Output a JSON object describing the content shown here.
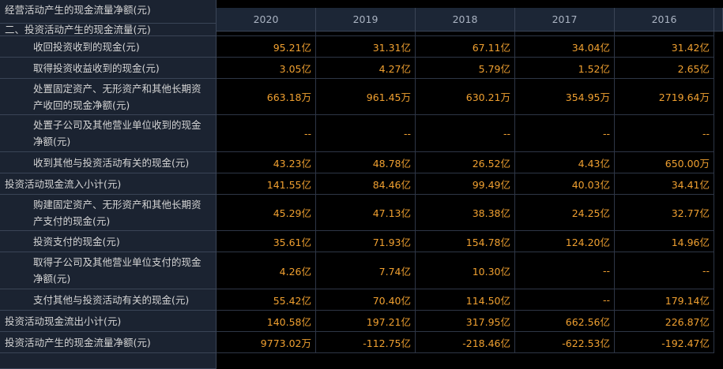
{
  "top_row": {
    "label": "经营活动产生的现金流量净额(元)"
  },
  "columns": [
    "2020",
    "2019",
    "2018",
    "2017",
    "2016"
  ],
  "rows": [
    {
      "label": "二、投资活动产生的现金流量(元)",
      "values": [
        "",
        "",
        "",
        "",
        ""
      ]
    },
    {
      "label": "收回投资收到的现金(元)",
      "values": [
        "95.21亿",
        "31.31亿",
        "67.11亿",
        "34.04亿",
        "31.42亿"
      ]
    },
    {
      "label": "取得投资收益收到的现金(元)",
      "values": [
        "3.05亿",
        "4.27亿",
        "5.79亿",
        "1.52亿",
        "2.65亿"
      ]
    },
    {
      "label": "处置固定资产、无形资产和其他长期资产收回的现金净额(元)",
      "values": [
        "663.18万",
        "961.45万",
        "630.21万",
        "354.95万",
        "2719.64万"
      ]
    },
    {
      "label": "处置子公司及其他营业单位收到的现金净额(元)",
      "values": [
        "--",
        "--",
        "--",
        "--",
        "--"
      ]
    },
    {
      "label": "收到其他与投资活动有关的现金(元)",
      "values": [
        "43.23亿",
        "48.78亿",
        "26.52亿",
        "4.43亿",
        "650.00万"
      ]
    },
    {
      "label": "投资活动现金流入小计(元)",
      "values": [
        "141.55亿",
        "84.46亿",
        "99.49亿",
        "40.03亿",
        "34.41亿"
      ]
    },
    {
      "label": "购建固定资产、无形资产和其他长期资产支付的现金(元)",
      "values": [
        "45.29亿",
        "47.13亿",
        "38.38亿",
        "24.25亿",
        "32.77亿"
      ]
    },
    {
      "label": "投资支付的现金(元)",
      "values": [
        "35.61亿",
        "71.93亿",
        "154.78亿",
        "124.20亿",
        "14.96亿"
      ]
    },
    {
      "label": "取得子公司及其他营业单位支付的现金净额(元)",
      "values": [
        "4.26亿",
        "7.74亿",
        "10.30亿",
        "--",
        "--"
      ]
    },
    {
      "label": "支付其他与投资活动有关的现金(元)",
      "values": [
        "55.42亿",
        "70.40亿",
        "114.50亿",
        "--",
        "179.14亿"
      ]
    },
    {
      "label": "投资活动现金流出小计(元)",
      "values": [
        "140.58亿",
        "197.21亿",
        "317.95亿",
        "662.56亿",
        "226.87亿"
      ]
    },
    {
      "label": "投资活动产生的现金流量净额(元)",
      "values": [
        "9773.02万",
        "-112.75亿",
        "-218.46亿",
        "-622.53亿",
        "-192.47亿"
      ]
    }
  ]
}
